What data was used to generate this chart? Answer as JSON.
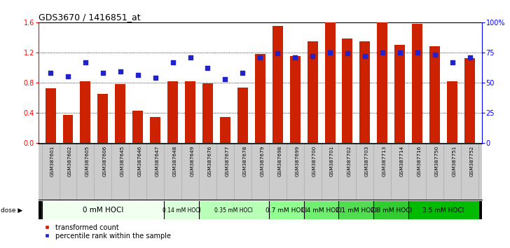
{
  "title": "GDS3670 / 1416851_at",
  "samples": [
    "GSM387601",
    "GSM387602",
    "GSM387605",
    "GSM387606",
    "GSM387645",
    "GSM387646",
    "GSM387647",
    "GSM387648",
    "GSM387649",
    "GSM387676",
    "GSM387677",
    "GSM387678",
    "GSM387679",
    "GSM387698",
    "GSM387699",
    "GSM387700",
    "GSM387701",
    "GSM387702",
    "GSM387703",
    "GSM387713",
    "GSM387714",
    "GSM387716",
    "GSM387750",
    "GSM387751",
    "GSM387752"
  ],
  "red_values": [
    0.72,
    0.37,
    0.82,
    0.65,
    0.78,
    0.42,
    0.34,
    0.82,
    0.82,
    0.79,
    0.34,
    0.73,
    1.18,
    1.55,
    1.15,
    1.35,
    1.6,
    1.38,
    1.35,
    1.6,
    1.3,
    1.58,
    1.28,
    0.82,
    1.12
  ],
  "blue_pct": [
    58,
    55,
    67,
    58,
    59,
    56,
    54,
    67,
    71,
    62,
    53,
    58,
    71,
    74,
    71,
    72,
    75,
    74,
    72,
    75,
    75,
    75,
    73,
    67,
    71
  ],
  "groups": [
    {
      "label": "0 mM HOCl",
      "start": 0,
      "end": 7,
      "color": "#f0fff0",
      "fs": 7.5
    },
    {
      "label": "0.14 mM HOCl",
      "start": 7,
      "end": 9,
      "color": "#d8ffd8",
      "fs": 5.5
    },
    {
      "label": "0.35 mM HOCl",
      "start": 9,
      "end": 13,
      "color": "#b8ffb8",
      "fs": 5.5
    },
    {
      "label": "0.7 mM HOCl",
      "start": 13,
      "end": 15,
      "color": "#90ff90",
      "fs": 6.5
    },
    {
      "label": "1.4 mM HOCl",
      "start": 15,
      "end": 17,
      "color": "#70ee70",
      "fs": 6.5
    },
    {
      "label": "2.1 mM HOCl",
      "start": 17,
      "end": 19,
      "color": "#50dd50",
      "fs": 6.5
    },
    {
      "label": "2.8 mM HOCl",
      "start": 19,
      "end": 21,
      "color": "#30cc30",
      "fs": 6.5
    },
    {
      "label": "3.5 mM HOCl",
      "start": 21,
      "end": 25,
      "color": "#00bb00",
      "fs": 6.5
    }
  ],
  "ylim_left": [
    0,
    1.6
  ],
  "ylim_right": [
    0,
    100
  ],
  "yticks_left": [
    0,
    0.4,
    0.8,
    1.2,
    1.6
  ],
  "yticks_right": [
    0,
    25,
    50,
    75,
    100
  ],
  "ytick_labels_right": [
    "0",
    "25",
    "50",
    "75",
    "100%"
  ],
  "bar_color": "#cc2200",
  "dot_color": "#2222cc",
  "bg_color": "#ffffff",
  "xlabel_bg": "#cccccc",
  "legend_red": "transformed count",
  "legend_blue": "percentile rank within the sample"
}
